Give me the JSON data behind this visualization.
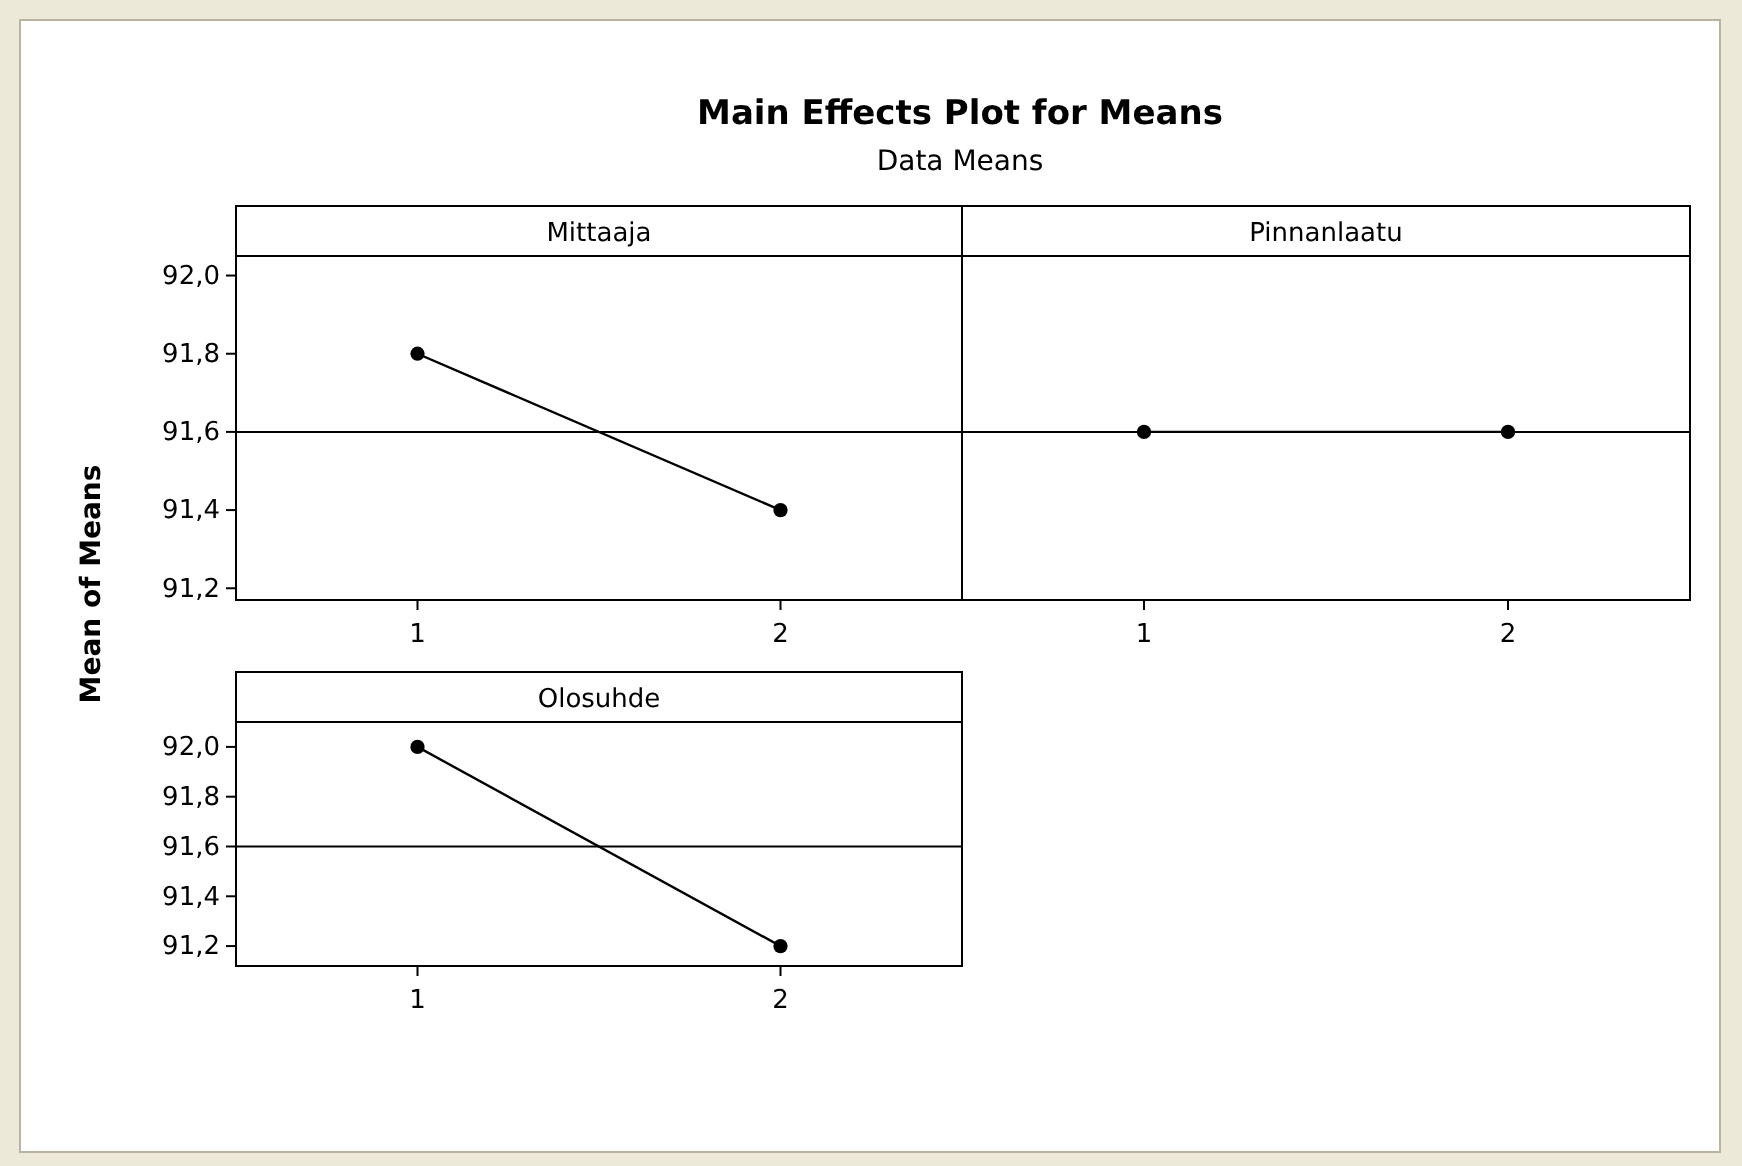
{
  "chart_data": [
    {
      "type": "line",
      "title": "Main Effects Plot for Means",
      "subtitle": "Data Means",
      "ylabel": "Mean of Means",
      "xlabel": "Mittaaja",
      "categories": [
        "1",
        "2"
      ],
      "series": [
        {
          "color": "#000000",
          "values": [
            91.8,
            91.4
          ]
        }
      ],
      "ylim": [
        91.17,
        92.05
      ],
      "yticks": [
        {
          "value": 91.2,
          "label": "91,2"
        },
        {
          "value": 91.4,
          "label": "91,4"
        },
        {
          "value": 91.6,
          "label": "91,6"
        },
        {
          "value": 91.8,
          "label": "91,8"
        },
        {
          "value": 92,
          "label": "92,0"
        }
      ],
      "ref_lines": [
        {
          "axis": "y",
          "value": 91.6,
          "color": "#000000"
        }
      ],
      "marker": "circle",
      "line_style": "solid"
    },
    {
      "type": "line",
      "xlabel": "Pinnanlaatu",
      "categories": [
        "1",
        "2"
      ],
      "series": [
        {
          "color": "#000000",
          "values": [
            91.6,
            91.6
          ]
        }
      ],
      "ylim": [
        91.17,
        92.05
      ],
      "ref_lines": [
        {
          "axis": "y",
          "value": 91.6,
          "color": "#000000"
        }
      ],
      "marker": "circle",
      "line_style": "solid",
      "tick_labels": "x"
    },
    {
      "type": "line",
      "xlabel": "Olosuhde",
      "categories": [
        "1",
        "2"
      ],
      "series": [
        {
          "color": "#000000",
          "values": [
            92.0,
            91.2
          ]
        }
      ],
      "ylim": [
        91.12,
        92.1
      ],
      "yticks": [
        {
          "value": 91.2,
          "label": "91,2"
        },
        {
          "value": 91.4,
          "label": "91,4"
        },
        {
          "value": 91.6,
          "label": "91,6"
        },
        {
          "value": 91.8,
          "label": "91,8"
        },
        {
          "value": 92,
          "label": "92,0"
        }
      ],
      "ref_lines": [
        {
          "axis": "y",
          "value": 91.6,
          "color": "#000000"
        }
      ],
      "marker": "circle",
      "line_style": "solid"
    }
  ]
}
